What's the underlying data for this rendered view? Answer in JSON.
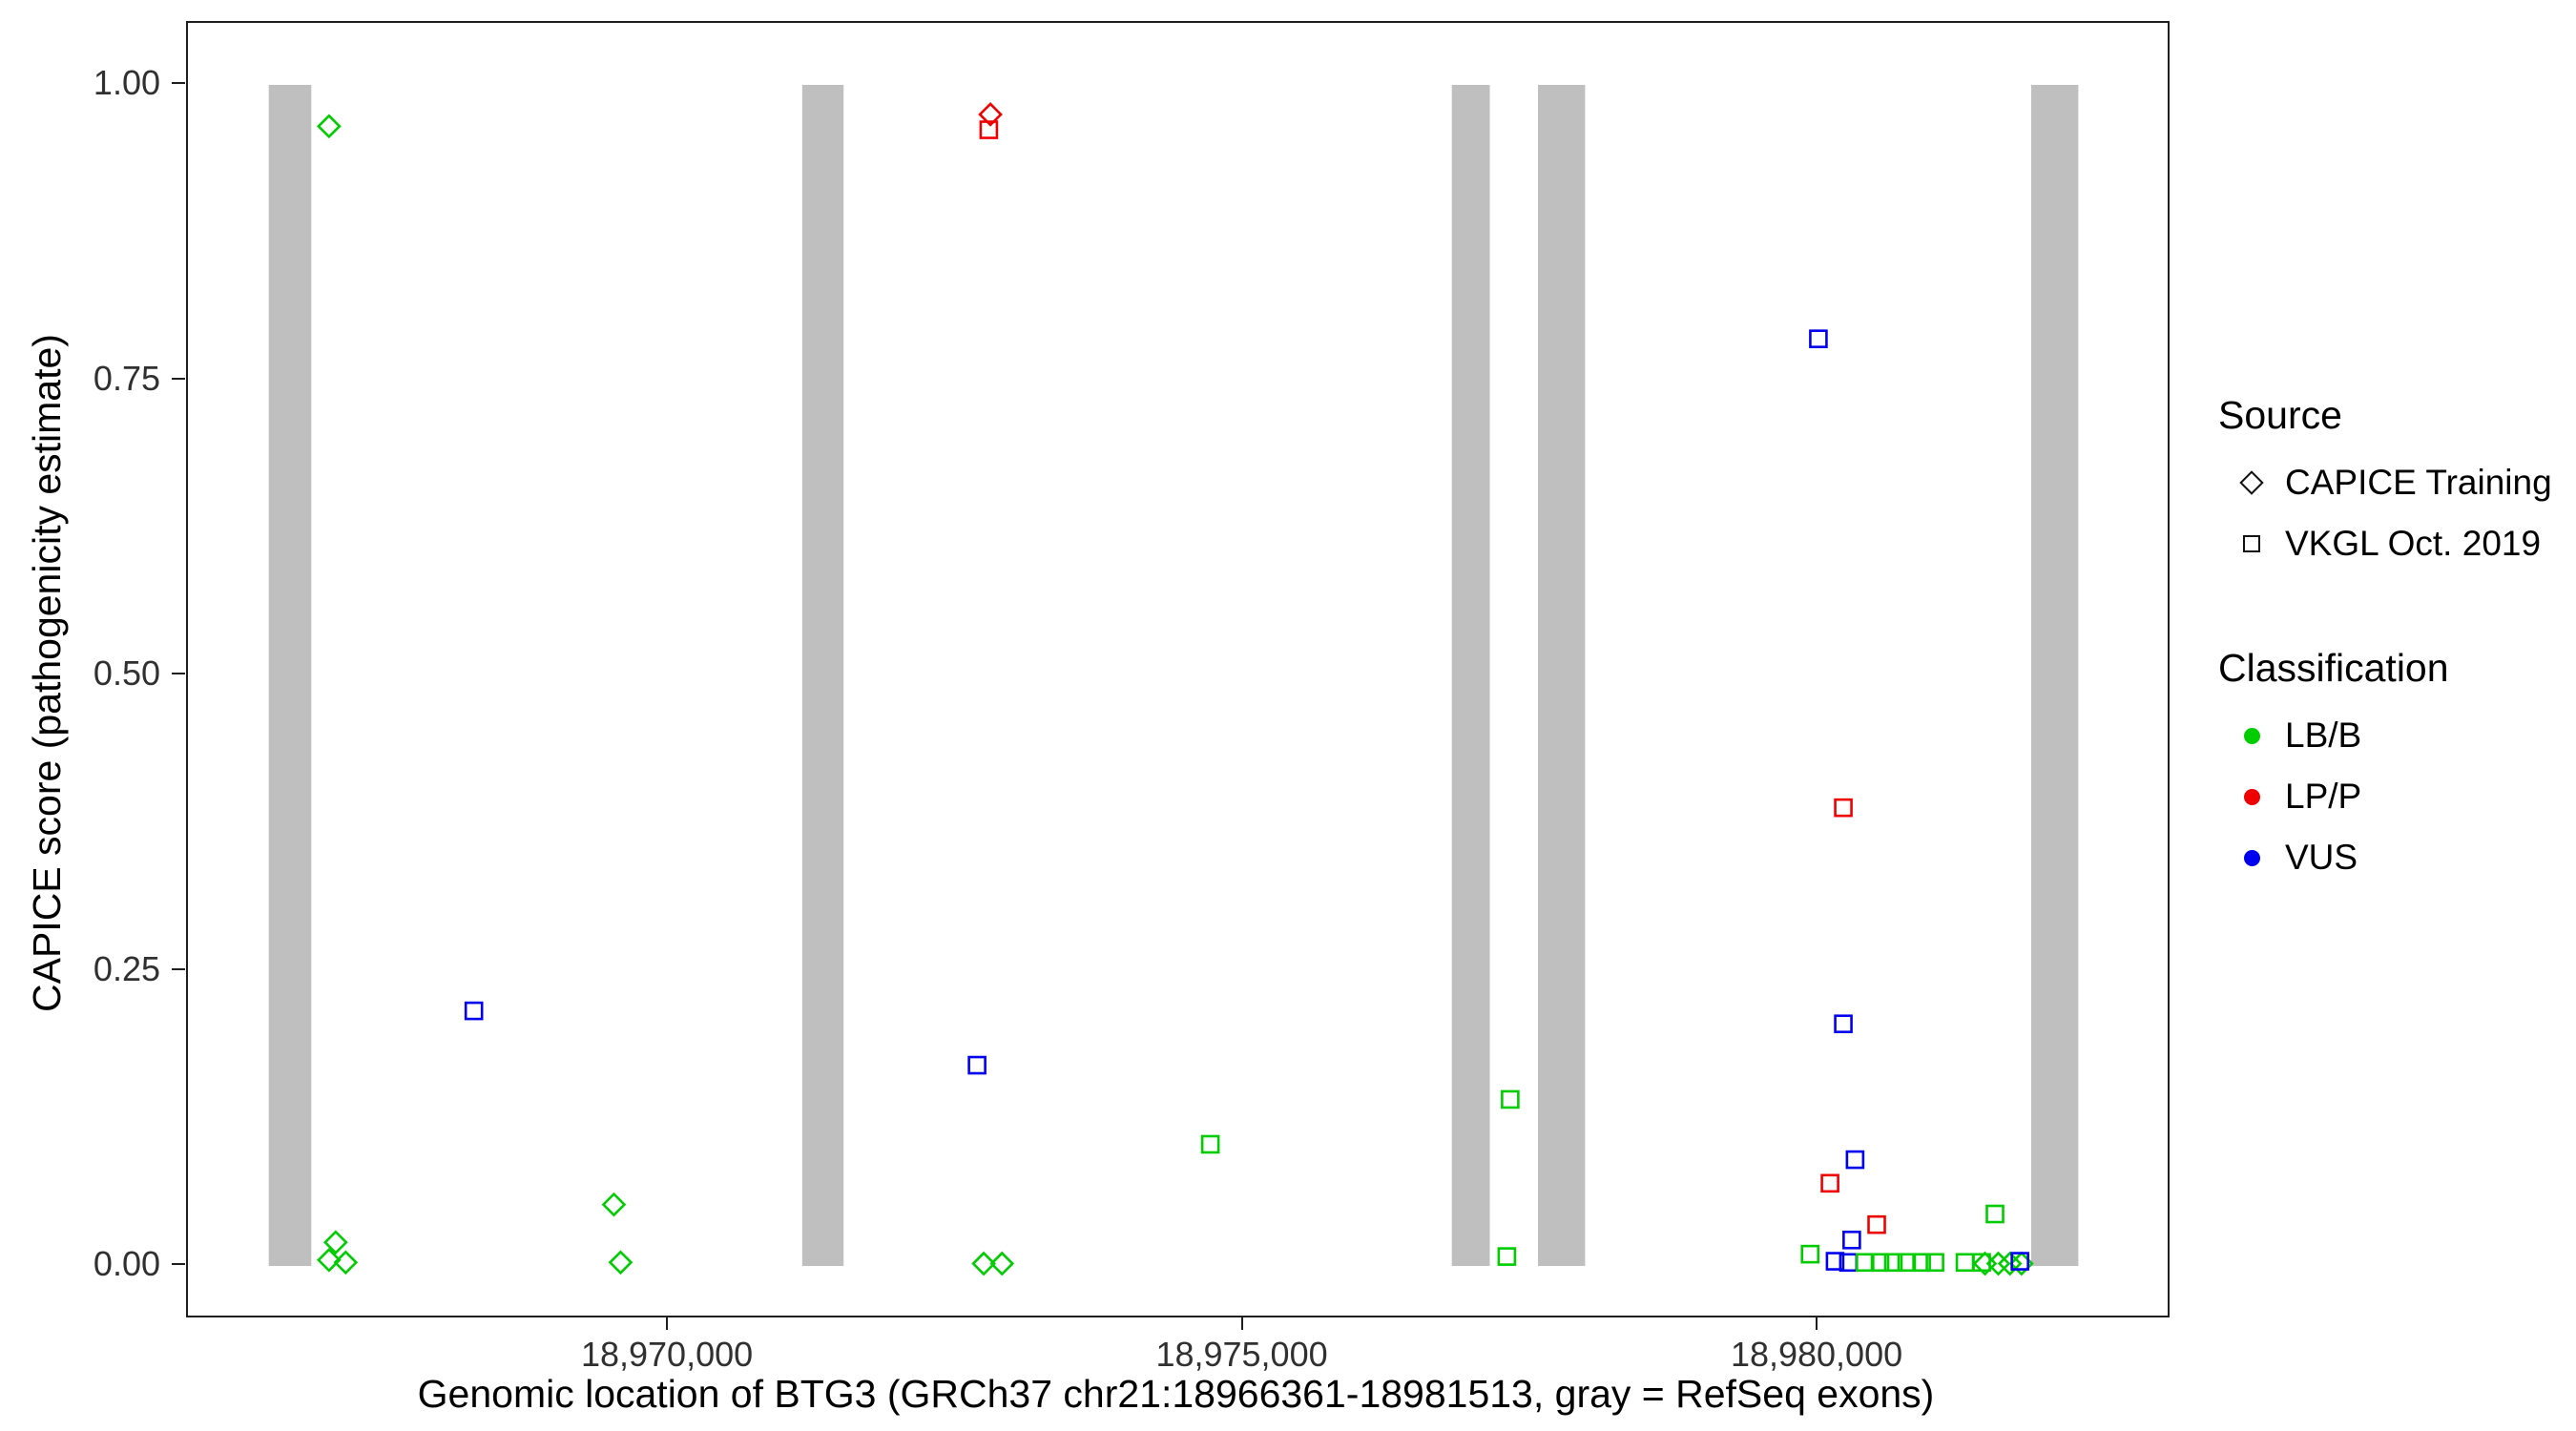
{
  "chart_data": {
    "type": "scatter",
    "title": "",
    "xlabel": "Genomic location of BTG3 (GRCh37 chr21:18966361-18981513, gray = RefSeq exons)",
    "ylabel": "CAPICE score (pathogenicity estimate)",
    "xlim": [
      18965817,
      18983037
    ],
    "ylim": [
      0,
      1
    ],
    "grid": false,
    "legend_position": "right",
    "x_ticks": [
      {
        "value": 18970000,
        "label": "18,970,000"
      },
      {
        "value": 18975000,
        "label": "18,975,000"
      },
      {
        "value": 18980000,
        "label": "18,980,000"
      }
    ],
    "y_ticks": [
      {
        "value": 0.0,
        "label": "0.00"
      },
      {
        "value": 0.25,
        "label": "0.25"
      },
      {
        "value": 0.5,
        "label": "0.50"
      },
      {
        "value": 0.75,
        "label": "0.75"
      },
      {
        "value": 1.0,
        "label": "1.00"
      }
    ],
    "exon_color": "#BFBFBF",
    "exons": [
      {
        "start": 18966520,
        "end": 18966890
      },
      {
        "start": 18971160,
        "end": 18971520
      },
      {
        "start": 18976810,
        "end": 18977140
      },
      {
        "start": 18977560,
        "end": 18977970
      },
      {
        "start": 18981850,
        "end": 18982260
      }
    ],
    "source_shapes": {
      "CAPICE Training": "diamond",
      "VKGL Oct. 2019": "square"
    },
    "classification_colors": {
      "LB/B": "#00CC00",
      "LP/P": "#EE0000",
      "VUS": "#0000EE"
    },
    "points": [
      {
        "x": 18967044,
        "y": 0.965,
        "source": "CAPICE Training",
        "classification": "LB/B"
      },
      {
        "x": 18967102,
        "y": 0.02,
        "source": "CAPICE Training",
        "classification": "LB/B"
      },
      {
        "x": 18967044,
        "y": 0.005,
        "source": "CAPICE Training",
        "classification": "LB/B"
      },
      {
        "x": 18967189,
        "y": 0.003,
        "source": "CAPICE Training",
        "classification": "LB/B"
      },
      {
        "x": 18969522,
        "y": 0.052,
        "source": "CAPICE Training",
        "classification": "LB/B"
      },
      {
        "x": 18969580,
        "y": 0.003,
        "source": "CAPICE Training",
        "classification": "LB/B"
      },
      {
        "x": 18972797,
        "y": 0.975,
        "source": "CAPICE Training",
        "classification": "LP/P"
      },
      {
        "x": 18972739,
        "y": 0.002,
        "source": "CAPICE Training",
        "classification": "LB/B"
      },
      {
        "x": 18972898,
        "y": 0.002,
        "source": "CAPICE Training",
        "classification": "LB/B"
      },
      {
        "x": 18981448,
        "y": 0.002,
        "source": "CAPICE Training",
        "classification": "LB/B"
      },
      {
        "x": 18981564,
        "y": 0.002,
        "source": "CAPICE Training",
        "classification": "LB/B"
      },
      {
        "x": 18981665,
        "y": 0.002,
        "source": "CAPICE Training",
        "classification": "LB/B"
      },
      {
        "x": 18981766,
        "y": 0.002,
        "source": "CAPICE Training",
        "classification": "LB/B"
      },
      {
        "x": 18968304,
        "y": 0.216,
        "source": "VKGL Oct. 2019",
        "classification": "VUS"
      },
      {
        "x": 18972783,
        "y": 0.962,
        "source": "VKGL Oct. 2019",
        "classification": "LP/P"
      },
      {
        "x": 18972681,
        "y": 0.17,
        "source": "VKGL Oct. 2019",
        "classification": "VUS"
      },
      {
        "x": 18974710,
        "y": 0.103,
        "source": "VKGL Oct. 2019",
        "classification": "LB/B"
      },
      {
        "x": 18977318,
        "y": 0.141,
        "source": "VKGL Oct. 2019",
        "classification": "LB/B"
      },
      {
        "x": 18977289,
        "y": 0.008,
        "source": "VKGL Oct. 2019",
        "classification": "LB/B"
      },
      {
        "x": 18979999,
        "y": 0.785,
        "source": "VKGL Oct. 2019",
        "classification": "VUS"
      },
      {
        "x": 18980216,
        "y": 0.388,
        "source": "VKGL Oct. 2019",
        "classification": "LP/P"
      },
      {
        "x": 18980216,
        "y": 0.205,
        "source": "VKGL Oct. 2019",
        "classification": "VUS"
      },
      {
        "x": 18980318,
        "y": 0.09,
        "source": "VKGL Oct. 2019",
        "classification": "VUS"
      },
      {
        "x": 18980100,
        "y": 0.07,
        "source": "VKGL Oct. 2019",
        "classification": "LP/P"
      },
      {
        "x": 18980506,
        "y": 0.035,
        "source": "VKGL Oct. 2019",
        "classification": "LP/P"
      },
      {
        "x": 18980289,
        "y": 0.022,
        "source": "VKGL Oct. 2019",
        "classification": "VUS"
      },
      {
        "x": 18979927,
        "y": 0.01,
        "source": "VKGL Oct. 2019",
        "classification": "LB/B"
      },
      {
        "x": 18980144,
        "y": 0.004,
        "source": "VKGL Oct. 2019",
        "classification": "VUS"
      },
      {
        "x": 18980260,
        "y": 0.003,
        "source": "VKGL Oct. 2019",
        "classification": "VUS"
      },
      {
        "x": 18980405,
        "y": 0.003,
        "source": "VKGL Oct. 2019",
        "classification": "LB/B"
      },
      {
        "x": 18980535,
        "y": 0.003,
        "source": "VKGL Oct. 2019",
        "classification": "LB/B"
      },
      {
        "x": 18980651,
        "y": 0.003,
        "source": "VKGL Oct. 2019",
        "classification": "LB/B"
      },
      {
        "x": 18980767,
        "y": 0.003,
        "source": "VKGL Oct. 2019",
        "classification": "LB/B"
      },
      {
        "x": 18980897,
        "y": 0.003,
        "source": "VKGL Oct. 2019",
        "classification": "LB/B"
      },
      {
        "x": 18981013,
        "y": 0.003,
        "source": "VKGL Oct. 2019",
        "classification": "LB/B"
      },
      {
        "x": 18981535,
        "y": 0.044,
        "source": "VKGL Oct. 2019",
        "classification": "LB/B"
      },
      {
        "x": 18981274,
        "y": 0.003,
        "source": "VKGL Oct. 2019",
        "classification": "LB/B"
      },
      {
        "x": 18981419,
        "y": 0.003,
        "source": "VKGL Oct. 2019",
        "classification": "LB/B"
      },
      {
        "x": 18981752,
        "y": 0.004,
        "source": "VKGL Oct. 2019",
        "classification": "VUS"
      }
    ]
  },
  "legend": {
    "source": {
      "title": "Source",
      "items": [
        {
          "label": "CAPICE Training",
          "shape": "diamond"
        },
        {
          "label": "VKGL Oct. 2019",
          "shape": "square"
        }
      ]
    },
    "classification": {
      "title": "Classification",
      "items": [
        {
          "label": "LB/B",
          "color": "#00CC00"
        },
        {
          "label": "LP/P",
          "color": "#EE0000"
        },
        {
          "label": "VUS",
          "color": "#0000EE"
        }
      ]
    }
  }
}
